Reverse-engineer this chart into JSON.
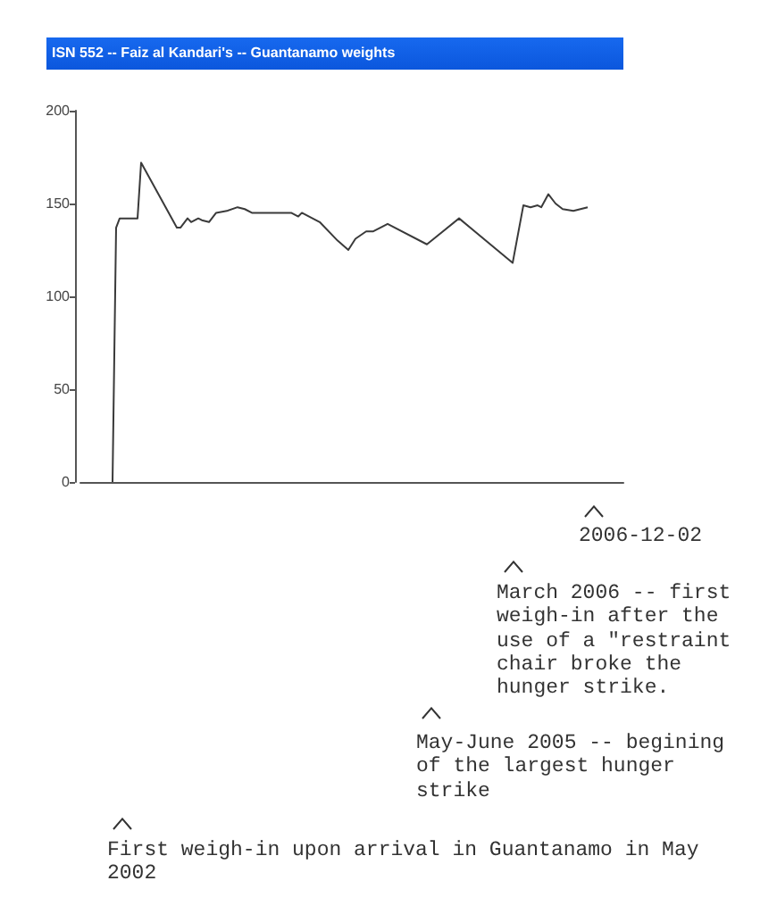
{
  "chart_data": {
    "type": "line",
    "title": "ISN 552 -- Faiz al Kandari's -- Guantanamo weights",
    "categories": [
      null,
      null,
      null,
      null,
      null,
      null,
      null,
      null,
      null,
      null,
      null,
      null,
      null,
      null,
      null,
      null,
      null,
      null,
      null,
      null,
      null,
      null,
      null,
      null,
      null,
      null,
      null,
      null,
      null,
      null,
      null,
      null,
      null,
      null,
      null,
      null,
      null,
      null,
      null,
      null,
      null,
      null,
      null,
      null,
      null,
      null,
      null,
      null,
      null,
      null,
      null,
      null,
      null,
      null,
      null,
      null,
      null,
      null,
      null,
      null,
      null,
      null,
      null,
      null,
      null,
      null,
      null,
      null,
      null,
      null,
      null,
      null,
      null,
      null,
      null,
      null,
      null,
      null,
      null,
      null,
      null,
      null,
      null,
      null,
      null,
      null,
      null,
      null,
      null,
      null,
      null,
      null,
      null,
      null,
      null,
      null,
      null,
      null,
      null,
      null,
      null,
      null,
      null,
      null,
      null,
      null,
      null,
      null,
      null,
      null,
      null,
      null,
      null,
      null,
      null,
      null,
      null,
      null,
      null,
      null,
      null,
      null,
      null,
      null,
      null,
      null,
      null,
      null,
      null,
      null,
      null,
      null,
      null,
      null,
      null,
      null,
      null,
      null,
      null,
      null,
      null,
      null,
      null,
      null,
      null,
      null,
      null,
      null,
      null,
      null,
      null,
      null,
      null
    ],
    "values": [
      null,
      null,
      null,
      null,
      null,
      null,
      null,
      null,
      null,
      0,
      137,
      142,
      null,
      null,
      null,
      null,
      142,
      172,
      null,
      null,
      null,
      null,
      null,
      null,
      null,
      null,
      null,
      137,
      137,
      null,
      142,
      140,
      null,
      142,
      141,
      null,
      140,
      null,
      145,
      null,
      null,
      146,
      null,
      null,
      148,
      null,
      147,
      null,
      145,
      null,
      null,
      null,
      145,
      null,
      null,
      null,
      null,
      null,
      null,
      145,
      null,
      143,
      145,
      null,
      null,
      null,
      null,
      140,
      null,
      null,
      null,
      null,
      130,
      null,
      null,
      125,
      null,
      131,
      null,
      null,
      135,
      null,
      135,
      null,
      null,
      null,
      139,
      null,
      null,
      null,
      null,
      null,
      null,
      null,
      null,
      null,
      null,
      128,
      null,
      null,
      null,
      null,
      null,
      null,
      null,
      null,
      142,
      null,
      null,
      null,
      null,
      null,
      null,
      null,
      null,
      null,
      null,
      null,
      null,
      null,
      null,
      118,
      null,
      null,
      149,
      null,
      148,
      null,
      149,
      148,
      null,
      155,
      null,
      150,
      null,
      147,
      null,
      null,
      146,
      null,
      null,
      null,
      148,
      null,
      null,
      null,
      null,
      null,
      null,
      null,
      null,
      null,
      null
    ],
    "color": "#3a3a3a",
    "ylim": [
      0,
      200
    ],
    "yticks": [
      0,
      50,
      100,
      150,
      200
    ],
    "grid": false,
    "marker": "none",
    "tick_labels": "y",
    "annotations": [
      "2006-12-02",
      "March 2006 -- first weigh-in after the use of a \"restraint chair broke the hunger strike.",
      "May-June 2005 -- begining of the largest hunger strike",
      "First weigh-in upon arrival in Guantanamo in May 2002"
    ]
  }
}
